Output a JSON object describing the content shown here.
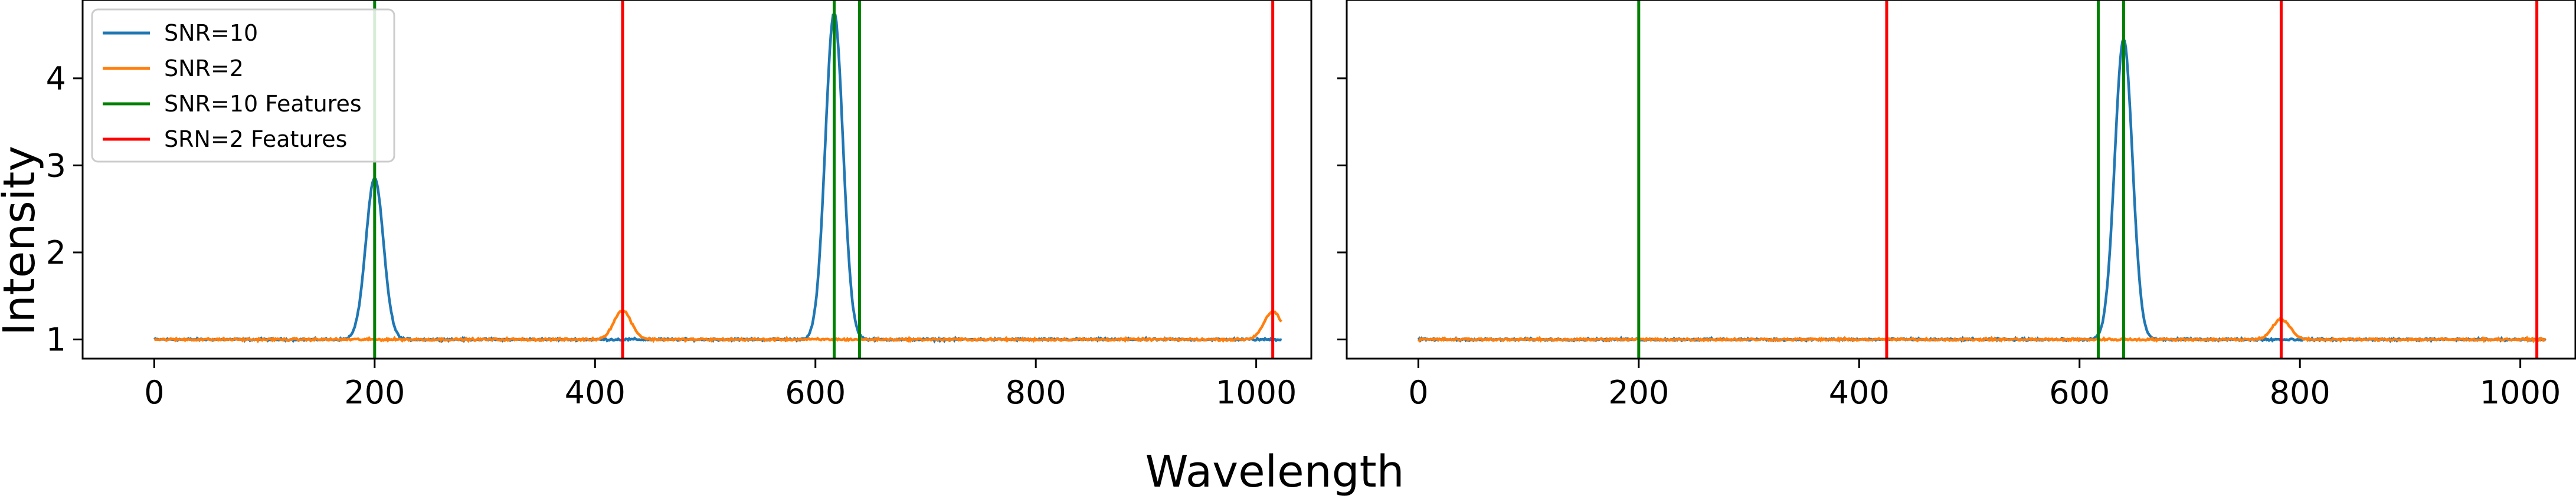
{
  "figure": {
    "shared_xlabel": "Wavelength",
    "shared_ylabel": "Intensity"
  },
  "chart_data": [
    {
      "type": "line",
      "xlabel": "Wavelength",
      "ylabel": "Intensity",
      "xlim": [
        -65,
        1050
      ],
      "ylim": [
        0.78,
        4.9
      ],
      "xticks": [
        0,
        200,
        400,
        600,
        800,
        1000
      ],
      "yticks": [
        1,
        2,
        3,
        4
      ],
      "grid": false,
      "legend": "top-left",
      "series": [
        {
          "name": "SNR=10",
          "color": "#1f77b4",
          "baseline": 1.0,
          "x_range": [
            0,
            1023
          ],
          "peaks": [
            {
              "center": 200,
              "height": 2.85,
              "sigma": 8
            },
            {
              "center": 617,
              "height": 4.75,
              "sigma": 8
            }
          ]
        },
        {
          "name": "SNR=2",
          "color": "#ff7f0e",
          "baseline": 1.0,
          "x_range": [
            0,
            1023
          ],
          "peaks": [
            {
              "center": 425,
              "height": 1.33,
              "sigma": 8
            },
            {
              "center": 1015,
              "height": 1.32,
              "sigma": 8
            }
          ]
        },
        {
          "name": "SNR=10 Features",
          "color": "#008000",
          "vlines": [
            200,
            617,
            640
          ]
        },
        {
          "name": "SRN=2 Features",
          "color": "#ff0000",
          "vlines": [
            425,
            1015
          ]
        }
      ]
    },
    {
      "type": "line",
      "xlabel": "Wavelength",
      "ylabel": "Intensity",
      "xlim": [
        -65,
        1050
      ],
      "ylim": [
        0.78,
        4.9
      ],
      "xticks": [
        0,
        200,
        400,
        600,
        800,
        1000
      ],
      "yticks": [
        1,
        2,
        3,
        4
      ],
      "ytick_labels_visible": false,
      "grid": false,
      "legend": "none",
      "series": [
        {
          "name": "SNR=10",
          "color": "#1f77b4",
          "baseline": 1.0,
          "x_range": [
            0,
            1023
          ],
          "peaks": [
            {
              "center": 640,
              "height": 4.45,
              "sigma": 8
            }
          ]
        },
        {
          "name": "SNR=2",
          "color": "#ff7f0e",
          "baseline": 1.0,
          "x_range": [
            0,
            1023
          ],
          "peaks": [
            {
              "center": 783,
              "height": 1.23,
              "sigma": 8
            }
          ]
        },
        {
          "name": "SNR=10 Features",
          "color": "#008000",
          "vlines": [
            200,
            617,
            640
          ]
        },
        {
          "name": "SRN=2 Features",
          "color": "#ff0000",
          "vlines": [
            425,
            783,
            1015
          ]
        }
      ]
    }
  ]
}
